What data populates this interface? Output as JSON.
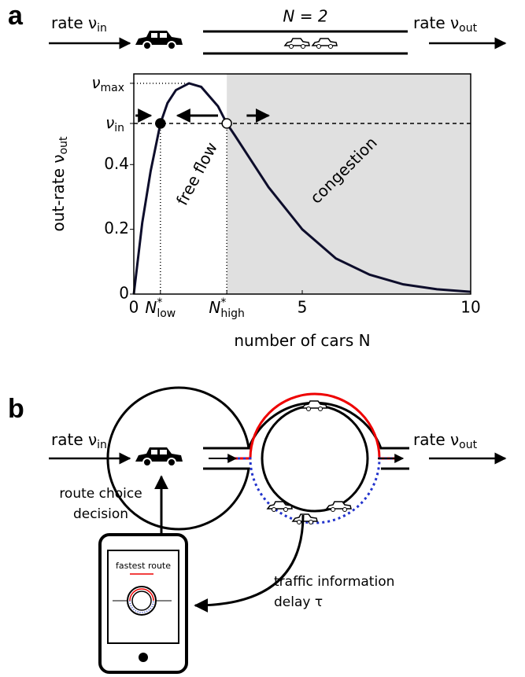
{
  "panel_labels": [
    "a",
    "b"
  ],
  "road_a": {
    "inflow": {
      "label": "rate ν",
      "sub": "in"
    },
    "road_label": "N = 2",
    "outflow": {
      "label": "rate ν",
      "sub": "out"
    }
  },
  "chart_data": {
    "type": "line",
    "x": [
      0,
      0.25,
      0.5,
      0.79,
      1,
      1.25,
      1.64,
      2,
      2.5,
      2.76,
      3,
      3.5,
      4,
      5,
      6,
      7,
      8,
      9,
      10
    ],
    "values": [
      0,
      0.22,
      0.38,
      0.527,
      0.59,
      0.63,
      0.651,
      0.64,
      0.58,
      0.527,
      0.49,
      0.41,
      0.33,
      0.2,
      0.11,
      0.06,
      0.03,
      0.015,
      0.007
    ],
    "color": "#0d0d2b",
    "xlim": [
      0,
      10
    ],
    "ylim": [
      0,
      0.68
    ],
    "xticks": [
      0,
      {
        "value": 0.79,
        "label": "N",
        "sup": "*",
        "sub": "low"
      },
      {
        "value": 2.76,
        "label": "N",
        "sup": "*",
        "sub": "high"
      },
      5,
      10
    ],
    "yticks": [
      0,
      0.2,
      0.4,
      {
        "value": 0.527,
        "label": "ν",
        "sub": "in"
      },
      {
        "value": 0.651,
        "label": "ν",
        "sub": "max"
      }
    ],
    "xlabel": {
      "label": "number of cars N"
    },
    "ylabel": {
      "label": "out-rate ν",
      "sub": "out"
    },
    "points": [
      {
        "x": 0.79,
        "y": 0.527,
        "filled": true
      },
      {
        "x": 2.76,
        "y": 0.527,
        "filled": false
      }
    ],
    "congestion_region": [
      2.76,
      10
    ],
    "annotations": [
      "free flow",
      "congestion"
    ]
  },
  "panel_b": {
    "inflow": {
      "label": "rate ν",
      "sub": "in"
    },
    "outflow": {
      "label": "rate ν",
      "sub": "out"
    },
    "decision": [
      "route choice",
      "decision"
    ],
    "phone_label": "fastest route",
    "info": [
      "traffic information",
      "delay τ"
    ]
  }
}
